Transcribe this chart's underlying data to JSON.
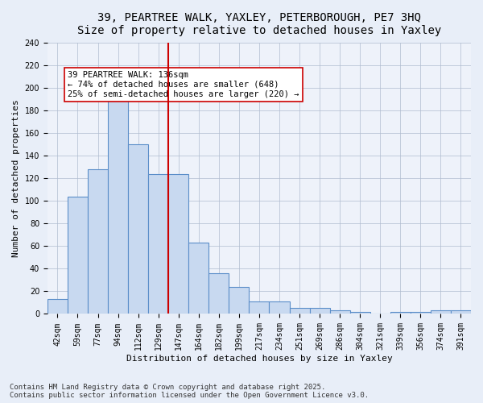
{
  "title_line1": "39, PEARTREE WALK, YAXLEY, PETERBOROUGH, PE7 3HQ",
  "title_line2": "Size of property relative to detached houses in Yaxley",
  "xlabel": "Distribution of detached houses by size in Yaxley",
  "ylabel": "Number of detached properties",
  "categories": [
    "42sqm",
    "59sqm",
    "77sqm",
    "94sqm",
    "112sqm",
    "129sqm",
    "147sqm",
    "164sqm",
    "182sqm",
    "199sqm",
    "217sqm",
    "234sqm",
    "251sqm",
    "269sqm",
    "286sqm",
    "304sqm",
    "321sqm",
    "339sqm",
    "356sqm",
    "374sqm",
    "391sqm"
  ],
  "values": [
    13,
    104,
    128,
    201,
    150,
    124,
    124,
    63,
    36,
    24,
    11,
    11,
    5,
    5,
    3,
    2,
    0,
    2,
    2,
    3,
    3
  ],
  "bar_color": "#c8d9f0",
  "bar_edge_color": "#5b8ec9",
  "vline_x_index": 5.5,
  "vline_color": "#cc0000",
  "annotation_text": "39 PEARTREE WALK: 136sqm\n← 74% of detached houses are smaller (648)\n25% of semi-detached houses are larger (220) →",
  "annotation_box_color": "#ffffff",
  "annotation_box_edge_color": "#cc0000",
  "ylim": [
    0,
    240
  ],
  "yticks": [
    0,
    20,
    40,
    60,
    80,
    100,
    120,
    140,
    160,
    180,
    200,
    220,
    240
  ],
  "footer_text": "Contains HM Land Registry data © Crown copyright and database right 2025.\nContains public sector information licensed under the Open Government Licence v3.0.",
  "bg_color": "#e8eef8",
  "plot_bg_color": "#eef2fa",
  "title_fontsize": 10,
  "axis_label_fontsize": 8,
  "tick_fontsize": 7,
  "annotation_fontsize": 7.5,
  "footer_fontsize": 6.5
}
